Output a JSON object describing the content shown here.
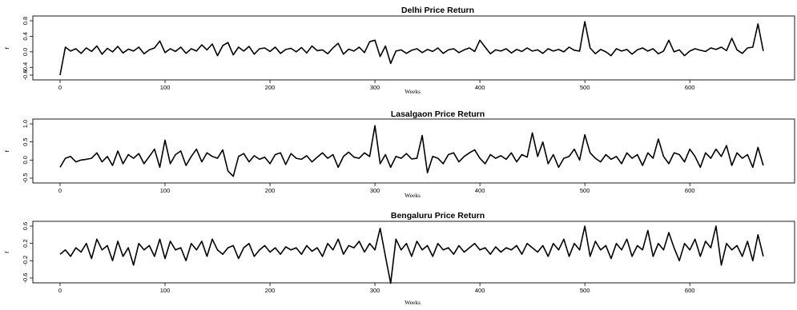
{
  "chart_data": [
    {
      "type": "line",
      "title": "Delhi Price Return",
      "xlabel": "Weeks",
      "ylabel": "r",
      "xlim": [
        0,
        680
      ],
      "ylim": [
        -0.6,
        0.8
      ],
      "x_ticks": [
        0,
        100,
        200,
        300,
        400,
        500,
        600
      ],
      "y_ticks": [
        -0.6,
        -0.4,
        0.0,
        0.4,
        0.8
      ],
      "y_tick_labels": [
        "-0.6",
        "-0.4",
        "0.0",
        "0.4",
        "0.8"
      ],
      "grid": false,
      "series": [
        {
          "color": "#000000",
          "x": [
            0,
            5,
            10,
            15,
            20,
            25,
            30,
            35,
            40,
            45,
            50,
            55,
            60,
            65,
            70,
            75,
            80,
            85,
            90,
            95,
            100,
            105,
            110,
            115,
            120,
            125,
            130,
            135,
            140,
            145,
            150,
            155,
            160,
            165,
            170,
            175,
            180,
            185,
            190,
            195,
            200,
            205,
            210,
            215,
            220,
            225,
            230,
            235,
            240,
            245,
            250,
            255,
            260,
            265,
            270,
            275,
            280,
            285,
            290,
            295,
            300,
            305,
            310,
            315,
            320,
            325,
            330,
            335,
            340,
            345,
            350,
            355,
            360,
            365,
            370,
            375,
            380,
            385,
            390,
            395,
            400,
            405,
            410,
            415,
            420,
            425,
            430,
            435,
            440,
            445,
            450,
            455,
            460,
            465,
            470,
            475,
            480,
            485,
            490,
            495,
            500,
            505,
            510,
            515,
            520,
            525,
            530,
            535,
            540,
            545,
            550,
            555,
            560,
            565,
            570,
            575,
            580,
            585,
            590,
            595,
            600,
            605,
            610,
            615,
            620,
            625,
            630,
            635,
            640,
            645,
            650,
            655,
            660,
            665,
            670
          ],
          "values": [
            -0.6,
            0.12,
            0.02,
            0.08,
            -0.04,
            0.1,
            0.01,
            0.15,
            -0.06,
            0.09,
            0.0,
            0.14,
            -0.03,
            0.07,
            0.02,
            0.12,
            -0.05,
            0.05,
            0.1,
            0.28,
            -0.02,
            0.08,
            0.01,
            0.12,
            -0.04,
            0.08,
            0.02,
            0.18,
            0.05,
            0.2,
            -0.1,
            0.16,
            0.24,
            -0.08,
            0.12,
            0.02,
            0.14,
            -0.06,
            0.08,
            0.1,
            0.01,
            0.12,
            -0.04,
            0.06,
            0.09,
            0.0,
            0.11,
            -0.03,
            0.15,
            0.03,
            0.05,
            -0.05,
            0.1,
            0.22,
            -0.06,
            0.07,
            0.02,
            0.12,
            -0.02,
            0.26,
            0.3,
            -0.12,
            0.15,
            -0.3,
            0.02,
            0.05,
            -0.04,
            0.04,
            0.08,
            -0.02,
            0.06,
            0.01,
            0.1,
            -0.04,
            0.05,
            0.08,
            -0.02,
            0.05,
            0.1,
            0.01,
            0.3,
            0.12,
            -0.05,
            0.05,
            0.02,
            0.08,
            -0.03,
            0.06,
            0.01,
            0.1,
            0.02,
            0.05,
            -0.04,
            0.08,
            0.02,
            0.06,
            0.0,
            0.12,
            0.04,
            0.02,
            0.78,
            0.1,
            -0.05,
            0.06,
            0.0,
            -0.1,
            0.08,
            0.02,
            0.06,
            -0.06,
            0.05,
            0.1,
            0.02,
            0.08,
            -0.05,
            0.02,
            0.3,
            0.0,
            0.05,
            -0.1,
            0.02,
            0.08,
            0.04,
            0.01,
            0.1,
            0.06,
            0.12,
            0.03,
            0.35,
            0.05,
            -0.04,
            0.1,
            0.12,
            0.72,
            0.02
          ]
        }
      ]
    },
    {
      "type": "line",
      "title": "Lasalgaon Price Return",
      "xlabel": "Weeks",
      "ylabel": "r",
      "xlim": [
        0,
        680
      ],
      "ylim": [
        -0.5,
        1.0
      ],
      "x_ticks": [
        0,
        100,
        200,
        300,
        400,
        500,
        600
      ],
      "y_ticks": [
        -0.5,
        0.0,
        0.5,
        1.0
      ],
      "y_tick_labels": [
        "-0.5",
        "0.0",
        "0.5",
        "1.0"
      ],
      "grid": false,
      "series": [
        {
          "color": "#000000",
          "x": [
            0,
            5,
            10,
            15,
            20,
            25,
            30,
            35,
            40,
            45,
            50,
            55,
            60,
            65,
            70,
            75,
            80,
            85,
            90,
            95,
            100,
            105,
            110,
            115,
            120,
            125,
            130,
            135,
            140,
            145,
            150,
            155,
            160,
            165,
            170,
            175,
            180,
            185,
            190,
            195,
            200,
            205,
            210,
            215,
            220,
            225,
            230,
            235,
            240,
            245,
            250,
            255,
            260,
            265,
            270,
            275,
            280,
            285,
            290,
            295,
            300,
            305,
            310,
            315,
            320,
            325,
            330,
            335,
            340,
            345,
            350,
            355,
            360,
            365,
            370,
            375,
            380,
            385,
            390,
            395,
            400,
            405,
            410,
            415,
            420,
            425,
            430,
            435,
            440,
            445,
            450,
            455,
            460,
            465,
            470,
            475,
            480,
            485,
            490,
            495,
            500,
            505,
            510,
            515,
            520,
            525,
            530,
            535,
            540,
            545,
            550,
            555,
            560,
            565,
            570,
            575,
            580,
            585,
            590,
            595,
            600,
            605,
            610,
            615,
            620,
            625,
            630,
            635,
            640,
            645,
            650,
            655,
            660,
            665,
            670
          ],
          "values": [
            -0.2,
            0.05,
            0.1,
            -0.05,
            0.0,
            0.02,
            0.05,
            0.2,
            -0.05,
            0.1,
            -0.15,
            0.25,
            -0.1,
            0.15,
            0.05,
            0.18,
            -0.1,
            0.1,
            0.3,
            -0.2,
            0.55,
            -0.1,
            0.15,
            0.25,
            -0.15,
            0.1,
            0.3,
            -0.05,
            0.2,
            0.1,
            0.05,
            0.28,
            -0.3,
            -0.45,
            0.1,
            0.18,
            -0.05,
            0.12,
            0.02,
            0.08,
            -0.1,
            0.15,
            0.2,
            -0.12,
            0.18,
            0.05,
            0.02,
            0.12,
            -0.05,
            0.08,
            0.2,
            0.05,
            0.15,
            -0.2,
            0.1,
            0.22,
            0.08,
            0.05,
            0.2,
            0.1,
            0.95,
            -0.1,
            0.15,
            -0.2,
            0.1,
            0.05,
            0.18,
            0.03,
            0.05,
            0.68,
            -0.35,
            0.1,
            0.05,
            -0.1,
            0.15,
            0.2,
            -0.05,
            0.1,
            0.2,
            0.28,
            0.05,
            -0.1,
            0.15,
            0.05,
            0.12,
            0.02,
            0.2,
            -0.05,
            0.15,
            0.08,
            0.75,
            0.1,
            0.5,
            -0.1,
            0.15,
            -0.2,
            0.05,
            0.1,
            0.3,
            0.0,
            0.7,
            0.2,
            0.05,
            -0.05,
            0.15,
            0.02,
            0.1,
            -0.1,
            0.2,
            0.05,
            0.15,
            -0.15,
            0.2,
            0.05,
            0.58,
            0.1,
            -0.1,
            0.2,
            0.15,
            -0.05,
            0.3,
            0.1,
            -0.2,
            0.2,
            0.05,
            0.3,
            0.1,
            0.4,
            -0.15,
            0.2,
            0.05,
            0.15,
            -0.2,
            0.35,
            -0.15
          ]
        }
      ]
    },
    {
      "type": "line",
      "title": "Bengaluru Price Return",
      "xlabel": "Weeks",
      "ylabel": "r",
      "xlim": [
        0,
        680
      ],
      "ylim": [
        -0.6,
        0.6
      ],
      "x_ticks": [
        0,
        100,
        200,
        300,
        400,
        500,
        600
      ],
      "y_ticks": [
        -0.6,
        -0.2,
        0.2,
        0.6
      ],
      "y_tick_labels": [
        "-0.6",
        "-0.2",
        "0.2",
        "0.6"
      ],
      "grid": false,
      "series": [
        {
          "color": "#000000",
          "x": [
            0,
            5,
            10,
            15,
            20,
            25,
            30,
            35,
            40,
            45,
            50,
            55,
            60,
            65,
            70,
            75,
            80,
            85,
            90,
            95,
            100,
            105,
            110,
            115,
            120,
            125,
            130,
            135,
            140,
            145,
            150,
            155,
            160,
            165,
            170,
            175,
            180,
            185,
            190,
            195,
            200,
            205,
            210,
            215,
            220,
            225,
            230,
            235,
            240,
            245,
            250,
            255,
            260,
            265,
            270,
            275,
            280,
            285,
            290,
            295,
            300,
            305,
            310,
            315,
            320,
            325,
            330,
            335,
            340,
            345,
            350,
            355,
            360,
            365,
            370,
            375,
            380,
            385,
            390,
            395,
            400,
            405,
            410,
            415,
            420,
            425,
            430,
            435,
            440,
            445,
            450,
            455,
            460,
            465,
            470,
            475,
            480,
            485,
            490,
            495,
            500,
            505,
            510,
            515,
            520,
            525,
            530,
            535,
            540,
            545,
            550,
            555,
            560,
            565,
            570,
            575,
            580,
            585,
            590,
            595,
            600,
            605,
            610,
            615,
            620,
            625,
            630,
            635,
            640,
            645,
            650,
            655,
            660,
            665,
            670
          ],
          "values": [
            -0.05,
            0.05,
            -0.1,
            0.1,
            0.0,
            0.2,
            -0.15,
            0.3,
            0.05,
            0.15,
            -0.2,
            0.25,
            -0.1,
            0.1,
            -0.3,
            0.2,
            0.05,
            0.15,
            -0.1,
            0.3,
            -0.15,
            0.25,
            0.05,
            0.1,
            -0.2,
            0.2,
            0.05,
            0.25,
            -0.1,
            0.3,
            0.05,
            -0.05,
            0.1,
            0.15,
            -0.15,
            0.1,
            0.2,
            -0.1,
            0.05,
            0.15,
            0.0,
            0.1,
            -0.05,
            0.12,
            0.05,
            0.1,
            -0.05,
            0.15,
            0.02,
            0.1,
            -0.1,
            0.2,
            0.05,
            0.3,
            -0.05,
            0.15,
            0.1,
            0.25,
            0.0,
            0.2,
            0.05,
            0.55,
            -0.1,
            -0.72,
            0.3,
            0.05,
            0.2,
            -0.1,
            0.25,
            0.05,
            0.15,
            -0.1,
            0.2,
            0.05,
            0.1,
            -0.05,
            0.15,
            0.0,
            0.1,
            0.2,
            0.05,
            0.1,
            -0.05,
            0.12,
            0.0,
            0.1,
            0.05,
            0.15,
            -0.05,
            0.2,
            0.1,
            0.0,
            0.15,
            -0.1,
            0.2,
            0.05,
            0.3,
            -0.1,
            0.2,
            0.05,
            0.6,
            -0.1,
            0.25,
            0.05,
            0.15,
            -0.15,
            0.2,
            0.05,
            0.3,
            -0.1,
            0.15,
            0.05,
            0.5,
            -0.1,
            0.2,
            0.05,
            0.45,
            0.1,
            -0.2,
            0.2,
            0.05,
            0.3,
            -0.1,
            0.25,
            0.1,
            0.6,
            -0.3,
            0.2,
            0.05,
            0.15,
            -0.1,
            0.25,
            -0.2,
            0.4,
            -0.1
          ]
        }
      ]
    }
  ]
}
